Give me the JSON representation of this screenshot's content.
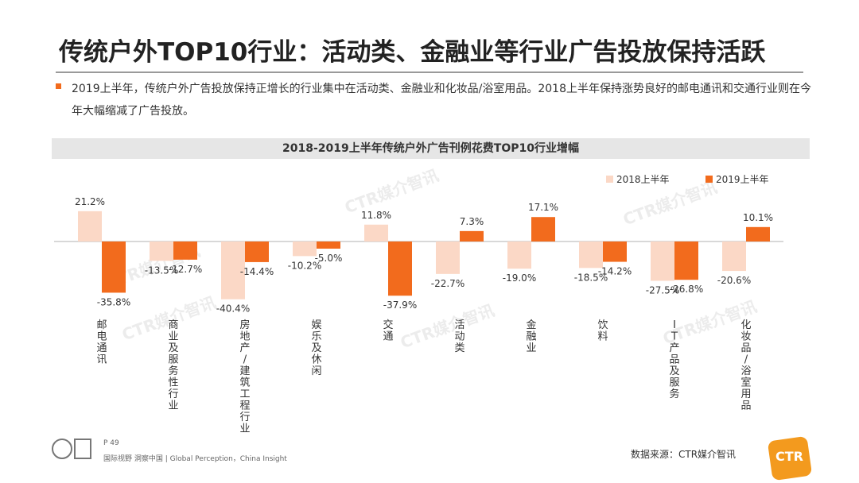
{
  "page": {
    "title": "传统户外TOP10行业：活动类、金融业等行业广告投放保持活跃",
    "description": "2019上半年，传统户外广告投放保持正增长的行业集中在活动类、金融业和化妆品/浴室用品。2018上半年保持涨势良好的邮电通讯和交通行业则在今年大幅缩减了广告投放。",
    "page_number": "P 49",
    "tagline": "国际视野 洞察中国 | Global Perception，China Insight",
    "source": "数据来源：CTR媒介智讯",
    "watermark": "CTR媒介智讯",
    "logo_text": "CTR"
  },
  "chart_data": {
    "type": "bar",
    "title": "2018-2019上半年传统户外广告刊例花费TOP10行业增幅",
    "categories": [
      "邮电通讯",
      "商业及服务性行业",
      "房地产/建筑工程行业",
      "娱乐及休闲",
      "交通",
      "活动类",
      "金融业",
      "饮料",
      "IT产品及服务",
      "化妆品/浴室用品"
    ],
    "series": [
      {
        "name": "2018上半年",
        "color": "#fbd8c6",
        "values": [
          21.2,
          -13.5,
          -40.4,
          -10.2,
          11.8,
          -22.7,
          -19.0,
          -18.5,
          -27.5,
          -20.6
        ]
      },
      {
        "name": "2019上半年",
        "color": "#f26b1d",
        "values": [
          -35.8,
          -12.7,
          -14.4,
          -5.0,
          -37.9,
          7.3,
          17.1,
          -14.2,
          -26.8,
          10.1
        ]
      }
    ],
    "value_labels": [
      [
        "21.2%",
        "-13.5%",
        "-40.4%",
        "-10.2%",
        "11.8%",
        "-22.7%",
        "-19.0%",
        "-18.5%",
        "-27.5%",
        "-20.6%"
      ],
      [
        "-35.8%",
        "-12.7%",
        "-14.4%",
        "-5.0%",
        "-37.9%",
        "7.3%",
        "17.1%",
        "-14.2%",
        "-26.8%",
        "10.1%"
      ]
    ],
    "legend_position": "top-right"
  }
}
